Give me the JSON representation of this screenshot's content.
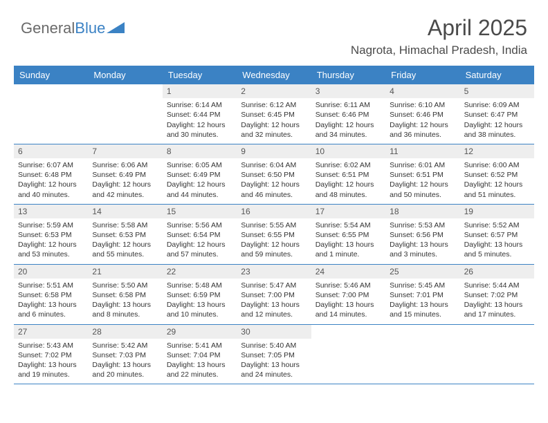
{
  "brand": {
    "part1": "General",
    "part2": "Blue"
  },
  "title": "April 2025",
  "location": "Nagrota, Himachal Pradesh, India",
  "colors": {
    "header_bg": "#3b82c4",
    "daynum_bg": "#eeeeee",
    "border": "#3b82c4",
    "text": "#333333",
    "title_text": "#4a4a4a"
  },
  "daynames": [
    "Sunday",
    "Monday",
    "Tuesday",
    "Wednesday",
    "Thursday",
    "Friday",
    "Saturday"
  ],
  "weeks": [
    [
      {
        "n": "",
        "sr": "",
        "ss": "",
        "dl": ""
      },
      {
        "n": "",
        "sr": "",
        "ss": "",
        "dl": ""
      },
      {
        "n": "1",
        "sr": "Sunrise: 6:14 AM",
        "ss": "Sunset: 6:44 PM",
        "dl": "Daylight: 12 hours and 30 minutes."
      },
      {
        "n": "2",
        "sr": "Sunrise: 6:12 AM",
        "ss": "Sunset: 6:45 PM",
        "dl": "Daylight: 12 hours and 32 minutes."
      },
      {
        "n": "3",
        "sr": "Sunrise: 6:11 AM",
        "ss": "Sunset: 6:46 PM",
        "dl": "Daylight: 12 hours and 34 minutes."
      },
      {
        "n": "4",
        "sr": "Sunrise: 6:10 AM",
        "ss": "Sunset: 6:46 PM",
        "dl": "Daylight: 12 hours and 36 minutes."
      },
      {
        "n": "5",
        "sr": "Sunrise: 6:09 AM",
        "ss": "Sunset: 6:47 PM",
        "dl": "Daylight: 12 hours and 38 minutes."
      }
    ],
    [
      {
        "n": "6",
        "sr": "Sunrise: 6:07 AM",
        "ss": "Sunset: 6:48 PM",
        "dl": "Daylight: 12 hours and 40 minutes."
      },
      {
        "n": "7",
        "sr": "Sunrise: 6:06 AM",
        "ss": "Sunset: 6:49 PM",
        "dl": "Daylight: 12 hours and 42 minutes."
      },
      {
        "n": "8",
        "sr": "Sunrise: 6:05 AM",
        "ss": "Sunset: 6:49 PM",
        "dl": "Daylight: 12 hours and 44 minutes."
      },
      {
        "n": "9",
        "sr": "Sunrise: 6:04 AM",
        "ss": "Sunset: 6:50 PM",
        "dl": "Daylight: 12 hours and 46 minutes."
      },
      {
        "n": "10",
        "sr": "Sunrise: 6:02 AM",
        "ss": "Sunset: 6:51 PM",
        "dl": "Daylight: 12 hours and 48 minutes."
      },
      {
        "n": "11",
        "sr": "Sunrise: 6:01 AM",
        "ss": "Sunset: 6:51 PM",
        "dl": "Daylight: 12 hours and 50 minutes."
      },
      {
        "n": "12",
        "sr": "Sunrise: 6:00 AM",
        "ss": "Sunset: 6:52 PM",
        "dl": "Daylight: 12 hours and 51 minutes."
      }
    ],
    [
      {
        "n": "13",
        "sr": "Sunrise: 5:59 AM",
        "ss": "Sunset: 6:53 PM",
        "dl": "Daylight: 12 hours and 53 minutes."
      },
      {
        "n": "14",
        "sr": "Sunrise: 5:58 AM",
        "ss": "Sunset: 6:53 PM",
        "dl": "Daylight: 12 hours and 55 minutes."
      },
      {
        "n": "15",
        "sr": "Sunrise: 5:56 AM",
        "ss": "Sunset: 6:54 PM",
        "dl": "Daylight: 12 hours and 57 minutes."
      },
      {
        "n": "16",
        "sr": "Sunrise: 5:55 AM",
        "ss": "Sunset: 6:55 PM",
        "dl": "Daylight: 12 hours and 59 minutes."
      },
      {
        "n": "17",
        "sr": "Sunrise: 5:54 AM",
        "ss": "Sunset: 6:55 PM",
        "dl": "Daylight: 13 hours and 1 minute."
      },
      {
        "n": "18",
        "sr": "Sunrise: 5:53 AM",
        "ss": "Sunset: 6:56 PM",
        "dl": "Daylight: 13 hours and 3 minutes."
      },
      {
        "n": "19",
        "sr": "Sunrise: 5:52 AM",
        "ss": "Sunset: 6:57 PM",
        "dl": "Daylight: 13 hours and 5 minutes."
      }
    ],
    [
      {
        "n": "20",
        "sr": "Sunrise: 5:51 AM",
        "ss": "Sunset: 6:58 PM",
        "dl": "Daylight: 13 hours and 6 minutes."
      },
      {
        "n": "21",
        "sr": "Sunrise: 5:50 AM",
        "ss": "Sunset: 6:58 PM",
        "dl": "Daylight: 13 hours and 8 minutes."
      },
      {
        "n": "22",
        "sr": "Sunrise: 5:48 AM",
        "ss": "Sunset: 6:59 PM",
        "dl": "Daylight: 13 hours and 10 minutes."
      },
      {
        "n": "23",
        "sr": "Sunrise: 5:47 AM",
        "ss": "Sunset: 7:00 PM",
        "dl": "Daylight: 13 hours and 12 minutes."
      },
      {
        "n": "24",
        "sr": "Sunrise: 5:46 AM",
        "ss": "Sunset: 7:00 PM",
        "dl": "Daylight: 13 hours and 14 minutes."
      },
      {
        "n": "25",
        "sr": "Sunrise: 5:45 AM",
        "ss": "Sunset: 7:01 PM",
        "dl": "Daylight: 13 hours and 15 minutes."
      },
      {
        "n": "26",
        "sr": "Sunrise: 5:44 AM",
        "ss": "Sunset: 7:02 PM",
        "dl": "Daylight: 13 hours and 17 minutes."
      }
    ],
    [
      {
        "n": "27",
        "sr": "Sunrise: 5:43 AM",
        "ss": "Sunset: 7:02 PM",
        "dl": "Daylight: 13 hours and 19 minutes."
      },
      {
        "n": "28",
        "sr": "Sunrise: 5:42 AM",
        "ss": "Sunset: 7:03 PM",
        "dl": "Daylight: 13 hours and 20 minutes."
      },
      {
        "n": "29",
        "sr": "Sunrise: 5:41 AM",
        "ss": "Sunset: 7:04 PM",
        "dl": "Daylight: 13 hours and 22 minutes."
      },
      {
        "n": "30",
        "sr": "Sunrise: 5:40 AM",
        "ss": "Sunset: 7:05 PM",
        "dl": "Daylight: 13 hours and 24 minutes."
      },
      {
        "n": "",
        "sr": "",
        "ss": "",
        "dl": ""
      },
      {
        "n": "",
        "sr": "",
        "ss": "",
        "dl": ""
      },
      {
        "n": "",
        "sr": "",
        "ss": "",
        "dl": ""
      }
    ]
  ]
}
